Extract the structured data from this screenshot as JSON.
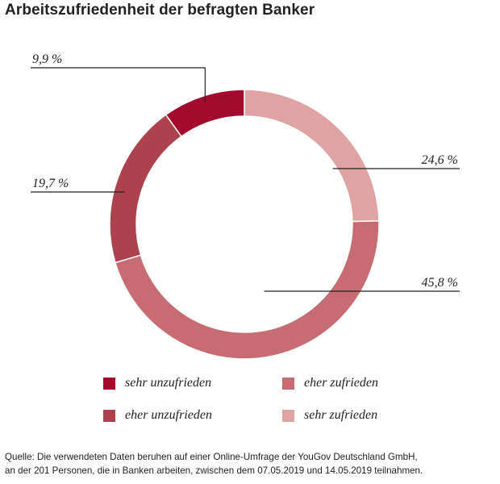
{
  "title": "Arbeitszufriedenheit der befragten Banker",
  "chart_data": {
    "type": "pie",
    "title": "Arbeitszufriedenheit der befragten Banker",
    "donut": true,
    "categories": [
      "sehr zufrieden",
      "eher zufrieden",
      "eher unzufrieden",
      "sehr unzufrieden"
    ],
    "values": [
      24.6,
      45.8,
      19.7,
      9.9
    ],
    "labels": [
      "24,6 %",
      "45,8 %",
      "19,7 %",
      "9,9 %"
    ],
    "colors": [
      "#e0a3a4",
      "#c76c73",
      "#ad414d",
      "#a30a2d"
    ],
    "legend_position": "bottom"
  },
  "legend": [
    {
      "label": "sehr unzufrieden",
      "color": "#a30a2d"
    },
    {
      "label": "eher zufrieden",
      "color": "#c76c73"
    },
    {
      "label": "eher unzufrieden",
      "color": "#ad414d"
    },
    {
      "label": "sehr zufrieden",
      "color": "#e0a3a4"
    }
  ],
  "source": {
    "line1": "Quelle: Die verwendeten Daten beruhen auf einer Online-Umfrage der YouGov Deutschland GmbH,",
    "line2": "an der 201 Personen, die in Banken arbeiten, zwischen dem 07.05.2019 und 14.05.2019 teilnahmen."
  }
}
